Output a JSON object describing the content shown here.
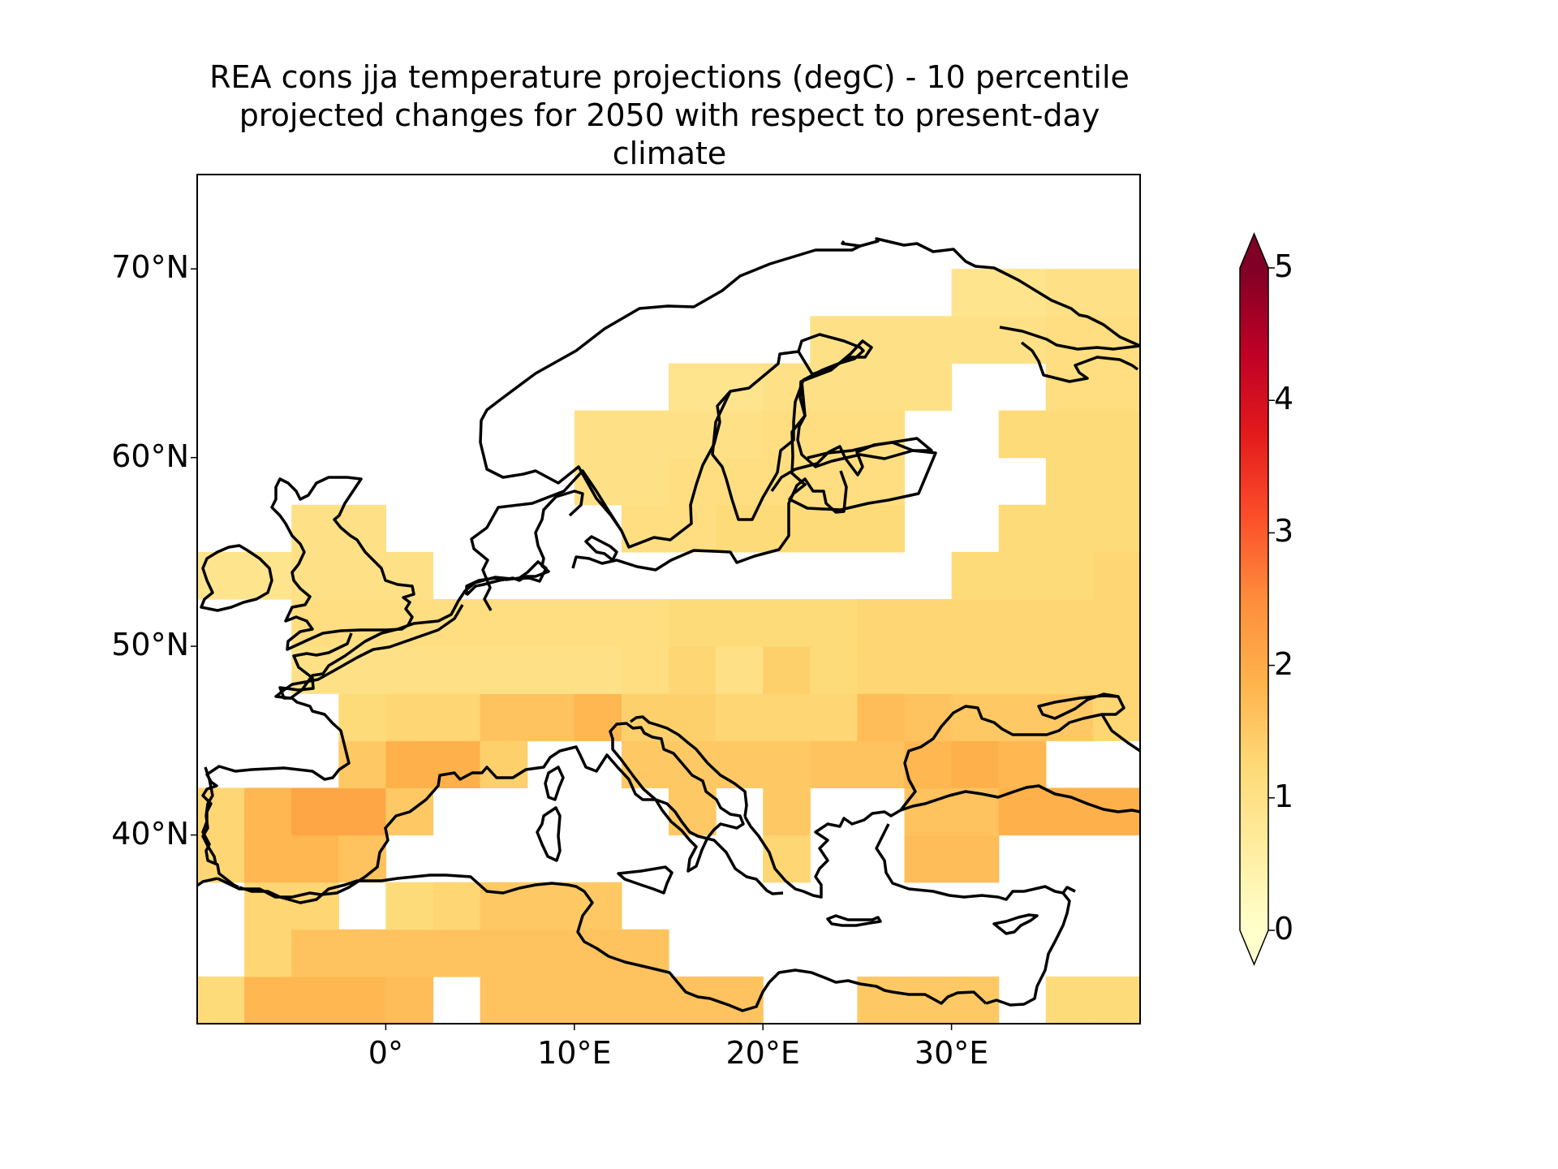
{
  "title_lines": [
    "REA cons jja temperature projections (degC) - 10 percentile",
    "projected changes for 2050 with respect to present-day",
    "climate"
  ],
  "map": {
    "projection": "PlateCarree",
    "lon_range": [
      -10,
      40
    ],
    "lat_range": [
      30,
      75
    ],
    "cell_size_deg": 2.5,
    "lat_ticks": [
      {
        "value": 70,
        "label": "70°N"
      },
      {
        "value": 60,
        "label": "60°N"
      },
      {
        "value": 50,
        "label": "50°N"
      },
      {
        "value": 40,
        "label": "40°N"
      }
    ],
    "lon_ticks": [
      {
        "value": 0,
        "label": "0°"
      },
      {
        "value": 10,
        "label": "10°E"
      },
      {
        "value": 20,
        "label": "20°E"
      },
      {
        "value": 30,
        "label": "30°E"
      }
    ],
    "coastline_color": "#000000"
  },
  "colorbar": {
    "colormap": "YlOrRd",
    "range": [
      0,
      5
    ],
    "extend": "both",
    "ticks": [
      {
        "value": 5,
        "label": "5"
      },
      {
        "value": 4,
        "label": "4"
      },
      {
        "value": 3,
        "label": "3"
      },
      {
        "value": 2,
        "label": "2"
      },
      {
        "value": 1,
        "label": "1"
      },
      {
        "value": 0,
        "label": "0"
      }
    ]
  },
  "chart_data": {
    "type": "heatmap",
    "title": "REA cons jja temperature projections (degC) - 10 percentile projected changes for 2050 with respect to present-day climate",
    "x_units": "degrees longitude",
    "y_units": "degrees latitude",
    "lon_start": -10,
    "lat_start": 30,
    "cell_size_deg": 2.5,
    "note_rows": "row 0 = latitude band 30-32.5N, cells start at lon -10 in 2.5 degree steps; null = no data",
    "values": [
      [
        1.2,
        1.8,
        1.8,
        1.8,
        1.7,
        null,
        1.6,
        1.6,
        1.6,
        1.6,
        1.6,
        1.6,
        null,
        null,
        1.5,
        1.5,
        1.5,
        null,
        1.2,
        1.2,
        1.2,
        1.2,
        1.2,
        1.2,
        1.2,
        1.2,
        1.2,
        1.2,
        1.2,
        1.2
      ],
      [
        null,
        1.3,
        1.6,
        1.6,
        1.6,
        1.6,
        1.6,
        1.6,
        1.6,
        1.6,
        null,
        null,
        null,
        null,
        null,
        null,
        null,
        null,
        null,
        null,
        null,
        null,
        null,
        null,
        1.5,
        1.5,
        1.6,
        1.6,
        1.6,
        1.6
      ],
      [
        null,
        1.3,
        1.3,
        null,
        1.2,
        1.3,
        1.5,
        1.5,
        1.5,
        null,
        null,
        null,
        null,
        null,
        null,
        null,
        null,
        null,
        null,
        null,
        null,
        null,
        1.5,
        1.5,
        1.5,
        1.6,
        1.6,
        1.6,
        1.6,
        1.6
      ],
      [
        1.3,
        1.8,
        1.8,
        1.6,
        null,
        null,
        null,
        null,
        null,
        null,
        null,
        null,
        1.3,
        null,
        null,
        1.7,
        1.7,
        null,
        null,
        null,
        1.8,
        1.8,
        2.0,
        2.0,
        2.0,
        2.0,
        2.0,
        2.0,
        2.0,
        2.0
      ],
      [
        1.3,
        1.8,
        2.1,
        2.1,
        1.5,
        null,
        null,
        null,
        null,
        null,
        1.5,
        null,
        1.5,
        null,
        null,
        1.6,
        1.6,
        1.9,
        1.9,
        1.9,
        1.7,
        null,
        null,
        null,
        null,
        null,
        null,
        null,
        null,
        null
      ],
      [
        null,
        null,
        null,
        1.5,
        1.9,
        1.9,
        1.4,
        null,
        null,
        1.5,
        1.5,
        1.5,
        1.5,
        1.6,
        1.6,
        1.8,
        1.9,
        1.8,
        null,
        null,
        null,
        null,
        null,
        null,
        null,
        null,
        null,
        null,
        null,
        null
      ],
      [
        null,
        null,
        null,
        1.2,
        1.3,
        1.3,
        1.6,
        1.6,
        1.8,
        1.4,
        1.4,
        1.3,
        1.3,
        1.3,
        1.7,
        1.6,
        1.5,
        1.5,
        1.5,
        1.3,
        1.4,
        null,
        null,
        null,
        null,
        1.3,
        1.3,
        null,
        null,
        1.5
      ],
      [
        null,
        null,
        1.0,
        1.0,
        1.0,
        1.0,
        1.0,
        1.0,
        1.0,
        1.1,
        1.3,
        1.0,
        1.4,
        1.2,
        1.3,
        1.3,
        1.3,
        1.3,
        1.3,
        1.3,
        1.3,
        1.4,
        1.4,
        1.4,
        1.4,
        1.4,
        1.4,
        1.4,
        1.4,
        1.5
      ],
      [
        null,
        null,
        1.1,
        1.1,
        1.1,
        1.1,
        1.1,
        1.1,
        1.1,
        1.1,
        1.2,
        1.2,
        1.2,
        1.2,
        1.3,
        1.3,
        1.3,
        1.3,
        1.3,
        1.3,
        1.3,
        1.3,
        1.3,
        1.3,
        1.3,
        1.3,
        1.3,
        1.3,
        1.4,
        1.4
      ],
      [
        0.9,
        0.9,
        1.0,
        1.0,
        1.0,
        null,
        null,
        null,
        null,
        null,
        null,
        null,
        null,
        null,
        null,
        null,
        1.2,
        1.2,
        1.2,
        1.3,
        1.3,
        1.3,
        1.3,
        1.3,
        1.3,
        1.3,
        1.3,
        1.3,
        1.3,
        1.3
      ],
      [
        null,
        null,
        1.0,
        1.0,
        null,
        null,
        null,
        null,
        null,
        1.1,
        1.1,
        1.2,
        1.2,
        1.2,
        1.2,
        null,
        null,
        1.2,
        1.2,
        1.2,
        1.2,
        1.2,
        1.2,
        1.2,
        1.2,
        1.2,
        1.2,
        1.2,
        1.2,
        1.2
      ],
      [
        null,
        null,
        null,
        null,
        null,
        null,
        null,
        null,
        1.0,
        1.0,
        1.1,
        1.1,
        1.1,
        1.1,
        1.1,
        null,
        null,
        null,
        1.2,
        1.2,
        1.2,
        1.2,
        1.2,
        1.2,
        1.2,
        1.2,
        1.2,
        1.2,
        1.2,
        1.2
      ],
      [
        null,
        null,
        null,
        null,
        null,
        null,
        null,
        null,
        1.0,
        1.0,
        1.0,
        1.0,
        1.1,
        1.1,
        1.1,
        null,
        null,
        1.2,
        1.2,
        1.2,
        1.2,
        1.2,
        1.2,
        1.2,
        1.2,
        1.2,
        1.2,
        1.2,
        1.2,
        1.2
      ],
      [
        null,
        null,
        null,
        null,
        null,
        null,
        null,
        null,
        null,
        null,
        0.9,
        0.9,
        1.0,
        1.0,
        1.0,
        1.0,
        null,
        null,
        1.1,
        1.1,
        1.1,
        1.1,
        1.1,
        1.1,
        1.1,
        1.1,
        1.1,
        1.2,
        1.2,
        1.2
      ],
      [
        null,
        null,
        null,
        null,
        null,
        null,
        null,
        null,
        null,
        null,
        null,
        null,
        null,
        1.0,
        1.0,
        1.0,
        1.0,
        1.0,
        1.1,
        1.1,
        1.1,
        1.1,
        1.1,
        1.1,
        1.2,
        1.2,
        1.2,
        1.3,
        1.2,
        1.2
      ],
      [
        null,
        null,
        null,
        null,
        null,
        null,
        null,
        null,
        null,
        null,
        null,
        null,
        null,
        null,
        null,
        null,
        0.9,
        0.9,
        1.0,
        1.0,
        1.2,
        1.1,
        1.3,
        1.3,
        1.2,
        1.2,
        1.2,
        1.2,
        null,
        null
      ],
      [
        null,
        null,
        null,
        null,
        null,
        null,
        null,
        null,
        null,
        null,
        null,
        null,
        null,
        null,
        null,
        null,
        null,
        null,
        null,
        null,
        null,
        null,
        null,
        null,
        null,
        null,
        null,
        null,
        null,
        null
      ],
      [
        null,
        null,
        null,
        null,
        null,
        null,
        null,
        null,
        null,
        null,
        null,
        null,
        null,
        null,
        null,
        null,
        null,
        null,
        null,
        null,
        null,
        null,
        null,
        null,
        null,
        null,
        null,
        null,
        null,
        null
      ]
    ]
  }
}
